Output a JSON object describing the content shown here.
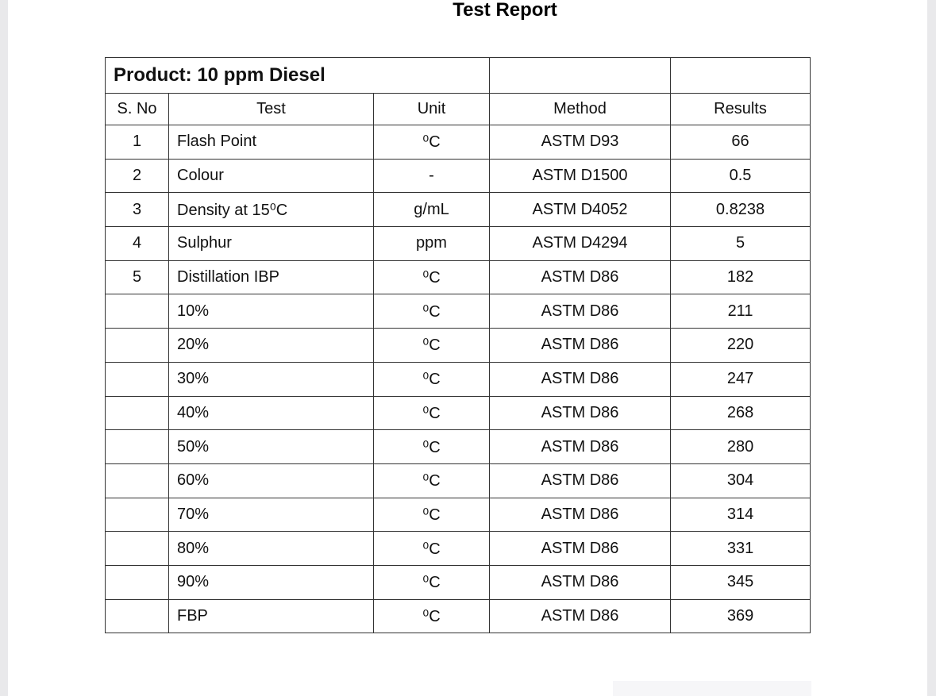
{
  "header": {
    "title": "Test Report"
  },
  "table": {
    "product": "Product: 10 ppm Diesel",
    "columns": [
      "S. No",
      "Test",
      "Unit",
      "Method",
      "Results"
    ],
    "rows": [
      {
        "no": 1,
        "test": "Flash Point",
        "unit": "⁰C",
        "method": "ASTM D93",
        "result": 66
      },
      {
        "no": 2,
        "test": "Colour",
        "unit": "-",
        "method": "ASTM D1500",
        "result": 0.5
      },
      {
        "no": 3,
        "test": "Density at 15⁰C",
        "unit": "g/mL",
        "method": "ASTM D4052",
        "result": 0.8238
      },
      {
        "no": 4,
        "test": "Sulphur",
        "unit": "ppm",
        "method": "ASTM D4294",
        "result": 5
      },
      {
        "no": 5,
        "test": "Distillation IBP",
        "unit": "⁰C",
        "method": "ASTM D86",
        "result": 182
      },
      {
        "test": "10%",
        "unit": "⁰C",
        "method": "ASTM D86",
        "result": 211
      },
      {
        "test": "20%",
        "unit": "⁰C",
        "method": "ASTM D86",
        "result": 220
      },
      {
        "test": "30%",
        "unit": "⁰C",
        "method": "ASTM D86",
        "result": 247
      },
      {
        "test": "40%",
        "unit": "⁰C",
        "method": "ASTM D86",
        "result": 268
      },
      {
        "test": "50%",
        "unit": "⁰C",
        "method": "ASTM D86",
        "result": 280
      },
      {
        "test": "60%",
        "unit": "⁰C",
        "method": "ASTM D86",
        "result": 304
      },
      {
        "test": "70%",
        "unit": "⁰C",
        "method": "ASTM D86",
        "result": 314
      },
      {
        "test": "80%",
        "unit": "⁰C",
        "method": "ASTM D86",
        "result": 331
      },
      {
        "test": "90%",
        "unit": "⁰C",
        "method": "ASTM D86",
        "result": 345
      },
      {
        "test": "FBP",
        "unit": "⁰C",
        "method": "ASTM D86",
        "result": 369
      }
    ]
  }
}
